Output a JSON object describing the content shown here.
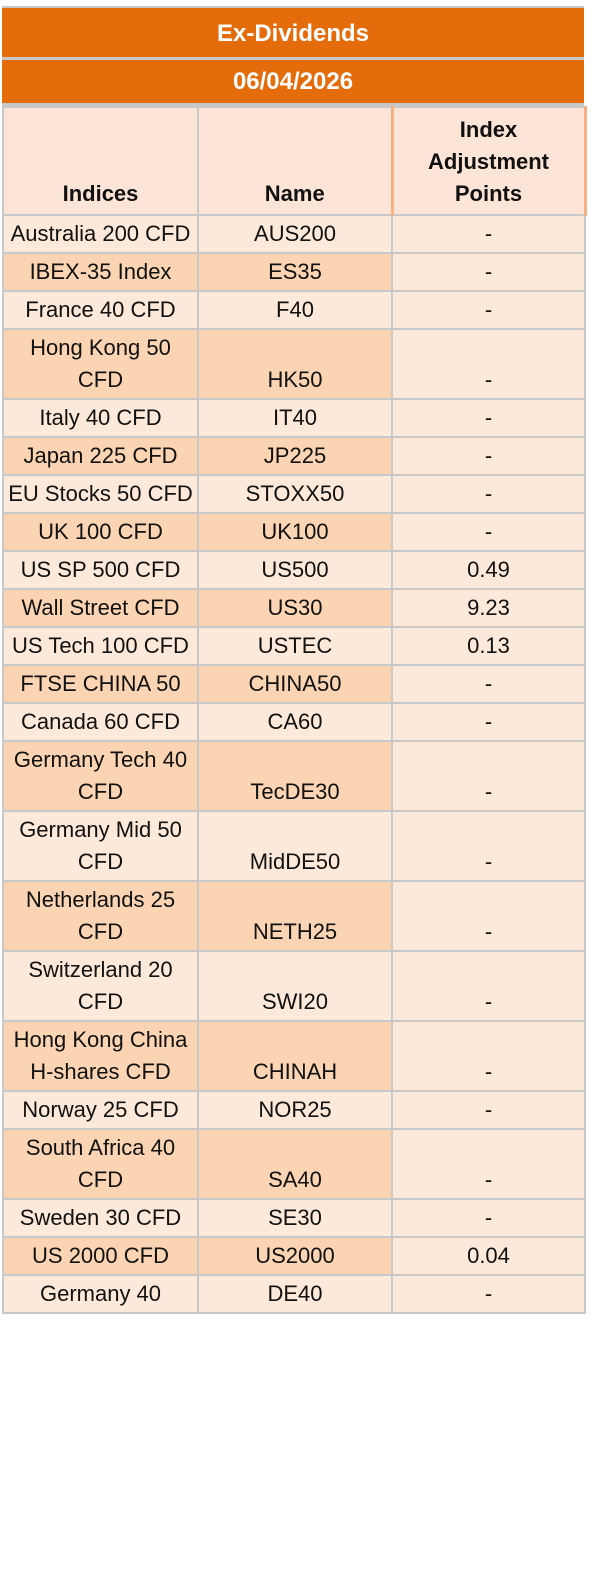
{
  "title": "Ex-Dividends",
  "date": "06/04/2026",
  "headers": {
    "indices": "Indices",
    "name": "Name",
    "adjustment": "Index Adjustment Points"
  },
  "rows": [
    {
      "index": "Australia 200 CFD",
      "name": "AUS200",
      "points": "-"
    },
    {
      "index": "IBEX-35 Index",
      "name": "ES35",
      "points": "-"
    },
    {
      "index": "France 40 CFD",
      "name": "F40",
      "points": "-"
    },
    {
      "index": "Hong Kong 50 CFD",
      "name": "HK50",
      "points": "-"
    },
    {
      "index": "Italy 40 CFD",
      "name": "IT40",
      "points": "-"
    },
    {
      "index": "Japan 225 CFD",
      "name": "JP225",
      "points": "-"
    },
    {
      "index": "EU Stocks 50 CFD",
      "name": "STOXX50",
      "points": "-"
    },
    {
      "index": "UK 100 CFD",
      "name": "UK100",
      "points": "-"
    },
    {
      "index": "US SP 500 CFD",
      "name": "US500",
      "points": "0.49"
    },
    {
      "index": "Wall Street CFD",
      "name": "US30",
      "points": "9.23"
    },
    {
      "index": "US Tech 100 CFD",
      "name": "USTEC",
      "points": "0.13"
    },
    {
      "index": "FTSE CHINA 50",
      "name": "CHINA50",
      "points": "-"
    },
    {
      "index": "Canada 60 CFD",
      "name": "CA60",
      "points": "-"
    },
    {
      "index": "Germany Tech 40 CFD",
      "name": "TecDE30",
      "points": "-"
    },
    {
      "index": "Germany Mid 50 CFD",
      "name": "MidDE50",
      "points": "-"
    },
    {
      "index": "Netherlands 25 CFD",
      "name": "NETH25",
      "points": "-"
    },
    {
      "index": "Switzerland 20 CFD",
      "name": "SWI20",
      "points": "-"
    },
    {
      "index": "Hong Kong China H-shares CFD",
      "name": "CHINAH",
      "points": "-"
    },
    {
      "index": "Norway 25 CFD",
      "name": "NOR25",
      "points": "-"
    },
    {
      "index": "South Africa 40 CFD",
      "name": "SA40",
      "points": "-"
    },
    {
      "index": "Sweden 30 CFD",
      "name": "SE30",
      "points": "-"
    },
    {
      "index": "US 2000 CFD",
      "name": "US2000",
      "points": "0.04"
    },
    {
      "index": "Germany 40",
      "name": "DE40",
      "points": "-"
    }
  ]
}
